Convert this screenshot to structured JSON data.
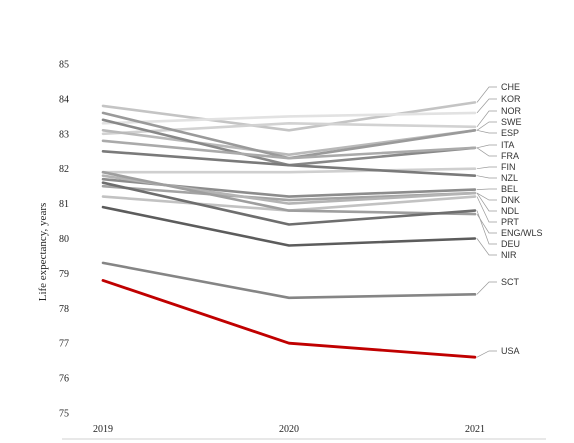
{
  "chart_data": {
    "type": "line",
    "ylabel": "Life expectancy, years",
    "x": [
      "2019",
      "2020",
      "2021"
    ],
    "ylim": [
      75,
      85
    ],
    "yticks": [
      75,
      76,
      77,
      78,
      79,
      80,
      81,
      82,
      83,
      84,
      85
    ],
    "grid": false,
    "legend": "right-end-labels",
    "series": [
      {
        "name": "CHE",
        "values": [
          83.8,
          83.1,
          83.9
        ],
        "color": "#c4c4c4"
      },
      {
        "name": "KOR",
        "values": [
          83.3,
          83.5,
          83.6
        ],
        "color": "#e2e2e2"
      },
      {
        "name": "NOR",
        "values": [
          83.0,
          83.3,
          83.2
        ],
        "color": "#d2d2d2"
      },
      {
        "name": "SWE",
        "values": [
          83.1,
          82.4,
          83.1
        ],
        "color": "#b9b9b9"
      },
      {
        "name": "ESP",
        "values": [
          83.6,
          82.3,
          83.1
        ],
        "color": "#9a9a9a"
      },
      {
        "name": "ITA",
        "values": [
          83.4,
          82.1,
          82.6
        ],
        "color": "#888888"
      },
      {
        "name": "FRA",
        "values": [
          82.8,
          82.3,
          82.6
        ],
        "color": "#aaaaaa"
      },
      {
        "name": "FIN",
        "values": [
          81.9,
          81.9,
          82.0
        ],
        "color": "#cfcfcf"
      },
      {
        "name": "NZL",
        "values": [
          82.5,
          82.1,
          81.8
        ],
        "color": "#7a7a7a"
      },
      {
        "name": "BEL",
        "values": [
          81.7,
          81.2,
          81.4
        ],
        "color": "#8c8c8c"
      },
      {
        "name": "DNK",
        "values": [
          81.5,
          81.1,
          81.3
        ],
        "color": "#a3a3a3"
      },
      {
        "name": "NDL",
        "values": [
          81.8,
          81.0,
          81.3
        ],
        "color": "#b4b4b4"
      },
      {
        "name": "PRT",
        "values": [
          81.2,
          80.8,
          81.2
        ],
        "color": "#c2c2c2"
      },
      {
        "name": "ENG/WLS",
        "values": [
          81.9,
          80.8,
          80.7
        ],
        "color": "#9e9e9e"
      },
      {
        "name": "DEU",
        "values": [
          81.6,
          80.4,
          80.8
        ],
        "color": "#6e6e6e"
      },
      {
        "name": "NIR",
        "values": [
          80.9,
          79.8,
          80.0
        ],
        "color": "#5c5c5c"
      },
      {
        "name": "SCT",
        "values": [
          79.3,
          78.3,
          78.4
        ],
        "color": "#858585"
      },
      {
        "name": "USA",
        "values": [
          78.8,
          77.0,
          76.6
        ],
        "color": "#c00000"
      }
    ]
  }
}
